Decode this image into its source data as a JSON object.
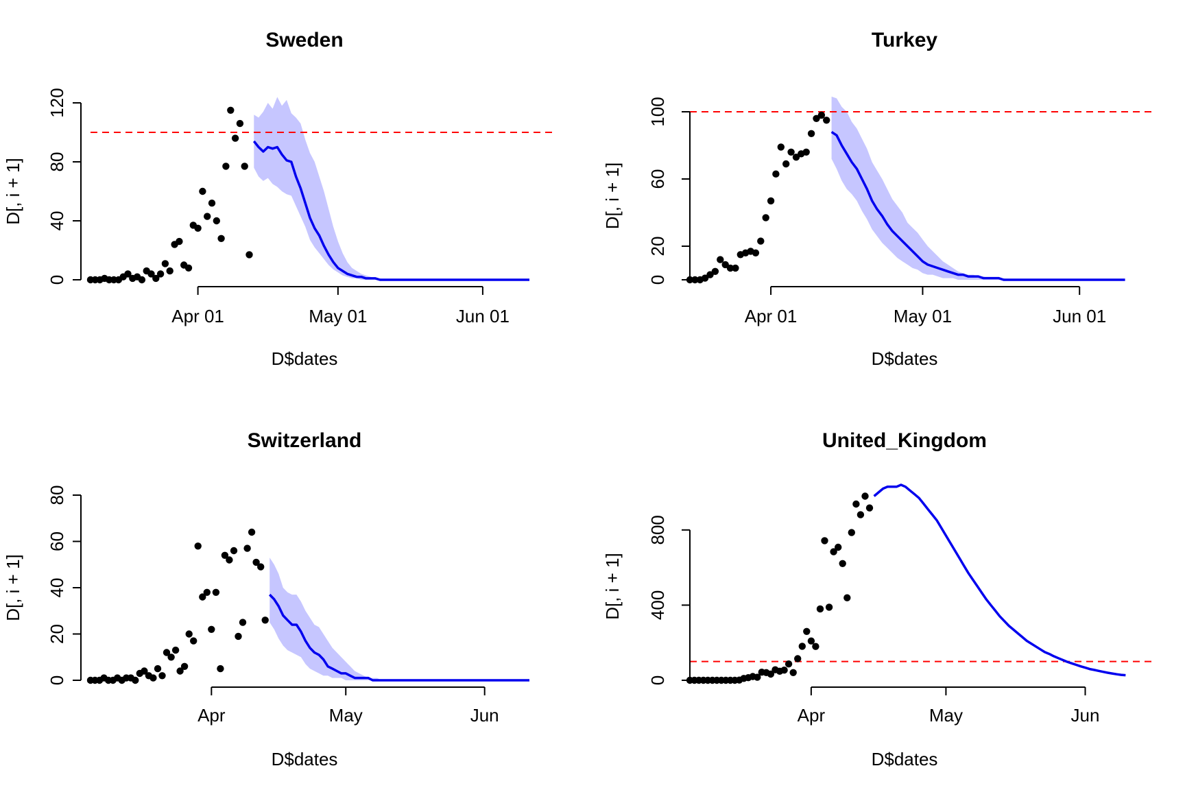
{
  "colors": {
    "points": "#000000",
    "forecast_line": "#0000ee",
    "band": "#c6c6ff",
    "threshold_line": "#ff0000"
  },
  "chart_data": [
    {
      "type": "scatter",
      "title": "Sweden",
      "xlabel": "D$dates",
      "ylabel": "D[, i + 1]",
      "xlim": [
        "2020-03-09",
        "2020-06-11"
      ],
      "ylim": [
        0,
        120
      ],
      "yticks": [
        0,
        40,
        80,
        120
      ],
      "xticks": [
        {
          "date": "2020-04-01",
          "label": "Apr 01"
        },
        {
          "date": "2020-05-01",
          "label": "May 01"
        },
        {
          "date": "2020-06-01",
          "label": "Jun 01"
        }
      ],
      "threshold": 100,
      "observed": {
        "start": "2020-03-09",
        "values": [
          0,
          0,
          0,
          1,
          0,
          0,
          0,
          2,
          4,
          1,
          2,
          0,
          6,
          4,
          1,
          4,
          11,
          6,
          24,
          26,
          10,
          8,
          37,
          35,
          60,
          43,
          52,
          40,
          28,
          77,
          115,
          96,
          106,
          77,
          17
        ]
      },
      "forecast": {
        "start": "2020-04-13",
        "mean": [
          94,
          90,
          87,
          90,
          89,
          90,
          85,
          81,
          80,
          70,
          62,
          52,
          42,
          35,
          30,
          23,
          17,
          12,
          8,
          6,
          4,
          3,
          2,
          2,
          1,
          1,
          1,
          0,
          0,
          0,
          0,
          0,
          0,
          0,
          0,
          0,
          0,
          0,
          0,
          0,
          0,
          0,
          0,
          0,
          0,
          0,
          0,
          0,
          0,
          0,
          0,
          0,
          0,
          0,
          0,
          0,
          0,
          0,
          0,
          0
        ],
        "lower": [
          76,
          70,
          67,
          69,
          65,
          63,
          60,
          58,
          57,
          50,
          43,
          36,
          27,
          22,
          18,
          14,
          10,
          7,
          5,
          3,
          2,
          1,
          1,
          0,
          0,
          0,
          0,
          0,
          0,
          0,
          0,
          0,
          0,
          0,
          0,
          0,
          0,
          0,
          0,
          0,
          0,
          0,
          0,
          0,
          0,
          0,
          0,
          0,
          0,
          0,
          0,
          0,
          0,
          0,
          0,
          0,
          0,
          0,
          0,
          0
        ],
        "upper": [
          112,
          110,
          114,
          120,
          116,
          124,
          118,
          122,
          113,
          110,
          106,
          95,
          86,
          80,
          70,
          60,
          48,
          36,
          26,
          18,
          12,
          8,
          6,
          4,
          3,
          2,
          1,
          1,
          0,
          0,
          0,
          0,
          0,
          0,
          0,
          0,
          0,
          0,
          0,
          0,
          0,
          0,
          0,
          0,
          0,
          0,
          0,
          0,
          0,
          0,
          0,
          0,
          0,
          0,
          0,
          0,
          0,
          0,
          0,
          0
        ]
      }
    },
    {
      "type": "scatter",
      "title": "Turkey",
      "xlabel": "D$dates",
      "ylabel": "D[, i + 1]",
      "xlim": [
        "2020-03-16",
        "2020-06-11"
      ],
      "ylim": [
        0,
        100
      ],
      "yticks": [
        0,
        20,
        60,
        100
      ],
      "xticks": [
        {
          "date": "2020-04-01",
          "label": "Apr 01"
        },
        {
          "date": "2020-05-01",
          "label": "May 01"
        },
        {
          "date": "2020-06-01",
          "label": "Jun 01"
        }
      ],
      "threshold": 100,
      "observed": {
        "start": "2020-03-16",
        "values": [
          0,
          0,
          0,
          1,
          3,
          5,
          12,
          9,
          7,
          7,
          15,
          16,
          17,
          16,
          23,
          37,
          47,
          63,
          79,
          69,
          76,
          73,
          75,
          76,
          87,
          96,
          98,
          95
        ]
      },
      "forecast": {
        "start": "2020-04-13",
        "mean": [
          88,
          86,
          80,
          75,
          70,
          66,
          60,
          54,
          47,
          42,
          38,
          33,
          29,
          26,
          23,
          20,
          17,
          14,
          11,
          9,
          8,
          7,
          6,
          5,
          4,
          3,
          3,
          2,
          2,
          2,
          1,
          1,
          1,
          1,
          0,
          0,
          0,
          0,
          0,
          0,
          0,
          0,
          0,
          0,
          0,
          0,
          0,
          0,
          0,
          0,
          0,
          0,
          0,
          0,
          0,
          0,
          0,
          0,
          0
        ],
        "lower": [
          72,
          66,
          59,
          54,
          51,
          47,
          41,
          36,
          30,
          26,
          22,
          19,
          16,
          13,
          11,
          9,
          7,
          6,
          4,
          3,
          3,
          2,
          1,
          1,
          1,
          0,
          0,
          0,
          0,
          0,
          0,
          0,
          0,
          0,
          0,
          0,
          0,
          0,
          0,
          0,
          0,
          0,
          0,
          0,
          0,
          0,
          0,
          0,
          0,
          0,
          0,
          0,
          0,
          0,
          0,
          0,
          0,
          0,
          0
        ],
        "upper": [
          109,
          108,
          103,
          100,
          94,
          90,
          84,
          78,
          70,
          65,
          60,
          54,
          48,
          44,
          40,
          34,
          31,
          28,
          24,
          20,
          17,
          14,
          11,
          9,
          7,
          5,
          4,
          3,
          3,
          2,
          2,
          1,
          1,
          1,
          1,
          0,
          0,
          0,
          0,
          0,
          0,
          0,
          0,
          0,
          0,
          0,
          0,
          0,
          0,
          0,
          0,
          0,
          0,
          0,
          0,
          0,
          0,
          0,
          0
        ]
      }
    },
    {
      "type": "scatter",
      "title": "Switzerland",
      "xlabel": "D$dates",
      "ylabel": "D[, i + 1]",
      "xlim": [
        "2020-03-05",
        "2020-06-11"
      ],
      "ylim": [
        0,
        80
      ],
      "yticks": [
        0,
        20,
        40,
        60,
        80
      ],
      "xticks": [
        {
          "date": "2020-04-01",
          "label": "Apr"
        },
        {
          "date": "2020-05-01",
          "label": "May"
        },
        {
          "date": "2020-06-01",
          "label": "Jun"
        }
      ],
      "threshold": null,
      "observed": {
        "start": "2020-03-05",
        "values": [
          0,
          0,
          0,
          1,
          0,
          0,
          1,
          0,
          1,
          1,
          0,
          3,
          4,
          2,
          1,
          5,
          2,
          12,
          10,
          13,
          4,
          6,
          20,
          17,
          58,
          36,
          38,
          22,
          38,
          5,
          54,
          52,
          56,
          19,
          25,
          57,
          64,
          51,
          49,
          26
        ]
      },
      "forecast": {
        "start": "2020-04-14",
        "mean": [
          37,
          35,
          32,
          28,
          26,
          24,
          24,
          21,
          17,
          14,
          12,
          11,
          9,
          6,
          5,
          4,
          3,
          3,
          2,
          1,
          1,
          1,
          1,
          0,
          0,
          0,
          0,
          0,
          0,
          0,
          0,
          0,
          0,
          0,
          0,
          0,
          0,
          0,
          0,
          0,
          0,
          0,
          0,
          0,
          0,
          0,
          0,
          0,
          0,
          0,
          0,
          0,
          0,
          0,
          0,
          0,
          0,
          0,
          0
        ],
        "lower": [
          25,
          22,
          18,
          15,
          13,
          12,
          11,
          10,
          7,
          5,
          4,
          3,
          2,
          2,
          1,
          1,
          1,
          0,
          0,
          0,
          0,
          0,
          0,
          0,
          0,
          0,
          0,
          0,
          0,
          0,
          0,
          0,
          0,
          0,
          0,
          0,
          0,
          0,
          0,
          0,
          0,
          0,
          0,
          0,
          0,
          0,
          0,
          0,
          0,
          0,
          0,
          0,
          0,
          0,
          0,
          0,
          0,
          0,
          0
        ],
        "upper": [
          53,
          50,
          46,
          40,
          38,
          37,
          37,
          34,
          30,
          27,
          24,
          23,
          20,
          17,
          14,
          12,
          10,
          8,
          6,
          4,
          3,
          2,
          1,
          1,
          1,
          0,
          0,
          0,
          0,
          0,
          0,
          0,
          0,
          0,
          0,
          0,
          0,
          0,
          0,
          0,
          0,
          0,
          0,
          0,
          0,
          0,
          0,
          0,
          0,
          0,
          0,
          0,
          0,
          0,
          0,
          0,
          0,
          0,
          0
        ]
      }
    },
    {
      "type": "scatter",
      "title": "United_Kingdom",
      "xlabel": "D$dates",
      "ylabel": "D[, i + 1]",
      "xlim": [
        "2020-03-05",
        "2020-06-11"
      ],
      "ylim": [
        0,
        1000
      ],
      "yticks": [
        0,
        400,
        800
      ],
      "xticks": [
        {
          "date": "2020-04-01",
          "label": "Apr"
        },
        {
          "date": "2020-05-01",
          "label": "May"
        },
        {
          "date": "2020-06-01",
          "label": "Jun"
        }
      ],
      "threshold": 100,
      "observed": {
        "start": "2020-03-05",
        "values": [
          0,
          0,
          0,
          0,
          0,
          0,
          0,
          0,
          0,
          0,
          0,
          1,
          10,
          14,
          20,
          16,
          43,
          41,
          33,
          56,
          48,
          54,
          87,
          41,
          115,
          181,
          260,
          209,
          180,
          380,
          743,
          389,
          684,
          708,
          621,
          439,
          786,
          938,
          881,
          980,
          917
        ]
      },
      "forecast": {
        "start": "2020-04-15",
        "mean": [
          980,
          1000,
          1020,
          1030,
          1030,
          1030,
          1040,
          1030,
          1010,
          990,
          970,
          940,
          910,
          880,
          850,
          810,
          770,
          730,
          690,
          650,
          610,
          570,
          535,
          500,
          465,
          430,
          400,
          370,
          340,
          315,
          290,
          270,
          250,
          230,
          210,
          195,
          180,
          165,
          150,
          140,
          128,
          118,
          108,
          98,
          90,
          82,
          74,
          67,
          60,
          55,
          50,
          45,
          40,
          36,
          32,
          29,
          27
        ]
      }
    }
  ]
}
